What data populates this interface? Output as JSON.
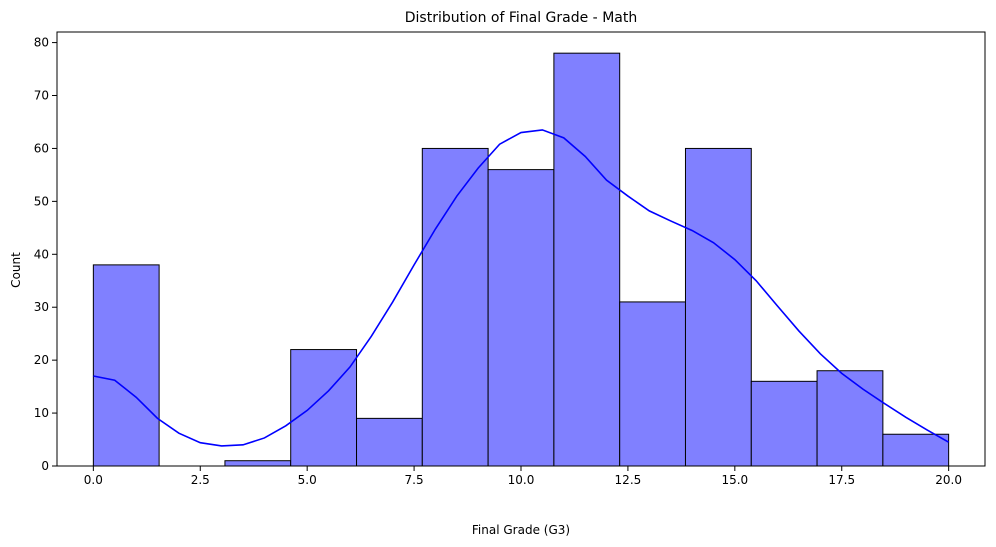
{
  "chart_data": {
    "type": "bar",
    "title": "Distribution of Final Grade - Math",
    "xlabel": "Final Grade (G3)",
    "ylabel": "Count",
    "xlim": [
      -0.85,
      20.85
    ],
    "ylim": [
      0,
      82
    ],
    "xticks": [
      "0.0",
      "2.5",
      "5.0",
      "7.5",
      "10.0",
      "12.5",
      "15.0",
      "17.5",
      "20.0"
    ],
    "yticks": [
      "0",
      "10",
      "20",
      "30",
      "40",
      "50",
      "60",
      "70",
      "80"
    ],
    "grid": false,
    "legend": false,
    "bins": [
      {
        "x0": 0.0,
        "x1": 1.538,
        "count": 38
      },
      {
        "x0": 1.538,
        "x1": 3.077,
        "count": 0
      },
      {
        "x0": 3.077,
        "x1": 4.615,
        "count": 1
      },
      {
        "x0": 4.615,
        "x1": 6.154,
        "count": 22
      },
      {
        "x0": 6.154,
        "x1": 7.692,
        "count": 9
      },
      {
        "x0": 7.692,
        "x1": 9.231,
        "count": 60
      },
      {
        "x0": 9.231,
        "x1": 10.769,
        "count": 56
      },
      {
        "x0": 10.769,
        "x1": 12.308,
        "count": 78
      },
      {
        "x0": 12.308,
        "x1": 13.846,
        "count": 31
      },
      {
        "x0": 13.846,
        "x1": 15.385,
        "count": 60
      },
      {
        "x0": 15.385,
        "x1": 16.923,
        "count": 16
      },
      {
        "x0": 16.923,
        "x1": 18.462,
        "count": 18
      },
      {
        "x0": 18.462,
        "x1": 20.0,
        "count": 6
      }
    ],
    "kde": {
      "x": [
        0.0,
        0.5,
        1.0,
        1.5,
        2.0,
        2.5,
        3.0,
        3.5,
        4.0,
        4.5,
        5.0,
        5.5,
        6.0,
        6.5,
        7.0,
        7.5,
        8.0,
        8.5,
        9.0,
        9.5,
        10.0,
        10.5,
        11.0,
        11.5,
        12.0,
        12.5,
        13.0,
        13.5,
        14.0,
        14.5,
        15.0,
        15.5,
        16.0,
        16.5,
        17.0,
        17.5,
        18.0,
        18.5,
        19.0,
        19.5,
        20.0
      ],
      "y": [
        17.0,
        16.2,
        13.0,
        9.0,
        6.2,
        4.4,
        3.8,
        4.0,
        5.3,
        7.6,
        10.5,
        14.2,
        18.7,
        24.5,
        31.0,
        38.0,
        44.8,
        51.0,
        56.3,
        60.8,
        63.0,
        63.5,
        62.0,
        58.5,
        54.0,
        51.0,
        48.2,
        46.3,
        44.5,
        42.2,
        39.0,
        35.0,
        30.2,
        25.5,
        21.2,
        17.5,
        14.5,
        11.8,
        9.2,
        6.8,
        4.5
      ]
    },
    "colors": {
      "bar_fill": "#8080ff",
      "bar_edge": "#000000",
      "kde_line": "#0000ff"
    }
  }
}
